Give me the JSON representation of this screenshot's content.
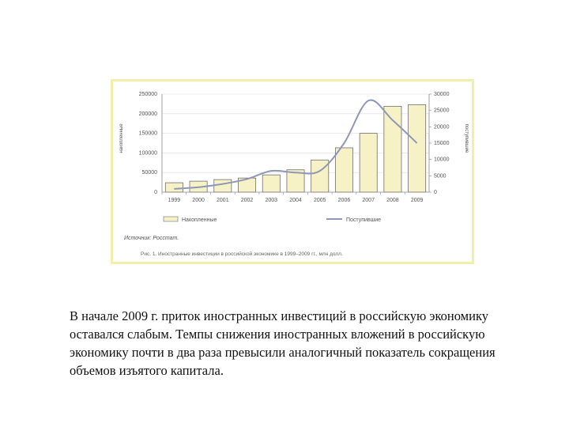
{
  "caption": "Рис. 1. Иностранные инвестиции в российской экономике в 1999–2009 гг., млн долл.",
  "paragraph": "В начале 2009 г. приток иностранных инвестиций в российскую экономику оставался слабым. Темпы снижения иностранных вложений в российскую экономику почти в два раза превысили аналогичный показатель сокращения объемов изъятого капитала.",
  "chart_data": {
    "type": "bar",
    "categories": [
      "1999",
      "2000",
      "2001",
      "2002",
      "2003",
      "2004",
      "2005",
      "2006",
      "2007",
      "2008",
      "2009"
    ],
    "left_ylim": [
      0,
      250000
    ],
    "left_ticks": [
      "250000",
      "200000",
      "150000",
      "100000",
      "50000",
      "0"
    ],
    "right_ylim": [
      0,
      30000
    ],
    "right_ticks": [
      "30000",
      "25000",
      "20000",
      "15000",
      "10000",
      "5000",
      "0"
    ],
    "left_ylabel": "накопленные",
    "right_ylabel": "поступившие",
    "legend": [
      "Накопленные",
      "Поступившие"
    ],
    "source": "Источник: Росстат.",
    "series": [
      {
        "name": "Накопленные",
        "type": "bar",
        "axis": "left",
        "values": [
          24000,
          28000,
          32000,
          36000,
          44000,
          57000,
          82000,
          113000,
          150000,
          219000,
          223000
        ]
      },
      {
        "name": "Поступившие",
        "type": "line",
        "axis": "right",
        "values": [
          1000,
          1500,
          2500,
          4000,
          6500,
          6000,
          6500,
          15000,
          28000,
          22000,
          15000
        ]
      }
    ],
    "colors": {
      "bar_fill": "#f6f2c6",
      "bar_stroke": "#6e6e6e",
      "line": "#8f97b8",
      "frame": "#f2f0a8"
    }
  }
}
